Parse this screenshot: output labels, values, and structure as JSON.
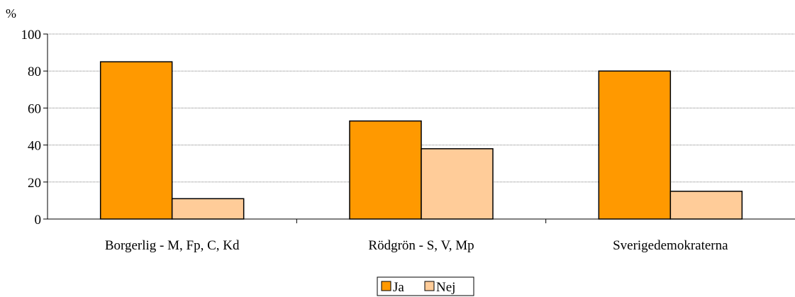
{
  "colors": {
    "ja": "#FF9900",
    "nej": "#FFCC99",
    "axis": "#000000",
    "grid": "#808080",
    "bar_stroke": "#000000"
  },
  "chart_data": {
    "type": "bar",
    "title": "",
    "xlabel": "",
    "ylabel": "%",
    "ylim": [
      0,
      100
    ],
    "yticks": [
      0,
      20,
      40,
      60,
      80,
      100
    ],
    "grid": true,
    "legend_position": "bottom-center",
    "categories": [
      "Borgerlig - M, Fp, C, Kd",
      "Rödgrön - S, V, Mp",
      "Sverigedemokraterna"
    ],
    "series": [
      {
        "name": "Ja",
        "color": "#FF9900",
        "values": [
          85,
          53,
          80
        ]
      },
      {
        "name": "Nej",
        "color": "#FFCC99",
        "values": [
          11,
          38,
          15
        ]
      }
    ]
  }
}
